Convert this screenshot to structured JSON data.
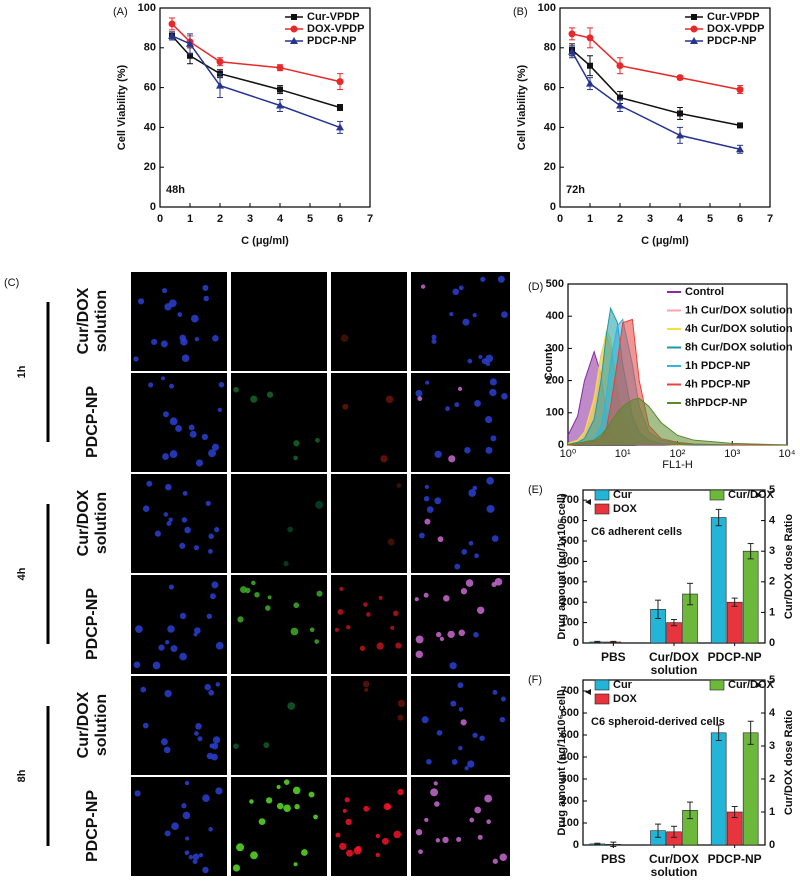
{
  "chart_data": [
    {
      "type": "line",
      "panel_label": "(A)",
      "annotation": "48h",
      "x_label": "C (μg/ml)",
      "y_label": "Cell Viability (%)",
      "x": [
        0.4,
        1,
        2,
        4,
        6
      ],
      "xlim": [
        0,
        7
      ],
      "xticks": [
        0,
        1,
        2,
        3,
        4,
        5,
        6,
        7
      ],
      "ylim": [
        0,
        100
      ],
      "yticks": [
        0,
        20,
        40,
        60,
        80,
        100
      ],
      "legend": "upper right",
      "series": [
        {
          "name": "Cur-VPDP",
          "color": "#111111",
          "values": [
            86,
            76,
            67,
            59,
            50
          ],
          "errors": [
            2,
            4,
            2,
            2,
            1.5
          ]
        },
        {
          "name": "DOX-VPDP",
          "color": "#e8292b",
          "values": [
            92,
            83,
            73,
            70,
            63
          ],
          "errors": [
            3,
            3,
            2,
            1.5,
            4
          ]
        },
        {
          "name": "PDCP-NP",
          "color": "#27358f",
          "values": [
            86,
            82,
            61,
            51,
            40
          ],
          "errors": [
            2,
            5,
            6,
            3,
            3
          ]
        }
      ]
    },
    {
      "type": "line",
      "panel_label": "(B)",
      "annotation": "72h",
      "x_label": "C (μg/ml)",
      "y_label": "Cell Viability (%)",
      "x": [
        0.4,
        1,
        2,
        4,
        6
      ],
      "xlim": [
        0,
        7
      ],
      "xticks": [
        0,
        1,
        2,
        3,
        4,
        5,
        6,
        7
      ],
      "ylim": [
        0,
        100
      ],
      "yticks": [
        0,
        20,
        40,
        60,
        80,
        100
      ],
      "legend": "upper right",
      "series": [
        {
          "name": "Cur-VPDP",
          "color": "#111111",
          "values": [
            79,
            71,
            55,
            47,
            41
          ],
          "errors": [
            3,
            5,
            3,
            3,
            1
          ]
        },
        {
          "name": "DOX-VPDP",
          "color": "#e8292b",
          "values": [
            87,
            85,
            71,
            65,
            59
          ],
          "errors": [
            3,
            5,
            4,
            1,
            2
          ]
        },
        {
          "name": "PDCP-NP",
          "color": "#27358f",
          "values": [
            78,
            62,
            51,
            36,
            29
          ],
          "errors": [
            3,
            3,
            3,
            4,
            2
          ]
        }
      ]
    },
    {
      "type": "area",
      "panel_label": "(D)",
      "x_label": "FL1-H",
      "y_label": "Count",
      "xscale": "log",
      "x": [
        1,
        1.5,
        2,
        3,
        4,
        5,
        6,
        8,
        10,
        15,
        20,
        30,
        50,
        100,
        200,
        1000,
        10000
      ],
      "xlim": [
        1,
        10000
      ],
      "xticks": [
        {
          "value": 1,
          "label": "10⁰"
        },
        {
          "value": 10,
          "label": "10¹"
        },
        {
          "value": 100,
          "label": "10²"
        },
        {
          "value": 1000,
          "label": "10³"
        },
        {
          "value": 10000,
          "label": "10⁴"
        }
      ],
      "ylim": [
        0,
        500
      ],
      "yticks": [
        0,
        100,
        200,
        300,
        400,
        500
      ],
      "legend": "upper right",
      "series": [
        {
          "name": "Control",
          "color": "#8b2a9c",
          "values": [
            30,
            90,
            200,
            290,
            220,
            100,
            40,
            10,
            5,
            2,
            0,
            0,
            0,
            0,
            0,
            0,
            0
          ]
        },
        {
          "name": "1h Cur/DOX solution",
          "color": "#f4a6b0",
          "values": [
            5,
            15,
            40,
            150,
            280,
            340,
            300,
            150,
            60,
            20,
            10,
            5,
            2,
            0,
            0,
            0,
            0
          ]
        },
        {
          "name": "4h Cur/DOX solution",
          "color": "#f2e23a",
          "values": [
            5,
            15,
            40,
            140,
            270,
            355,
            330,
            180,
            80,
            25,
            10,
            5,
            2,
            0,
            0,
            0,
            0
          ]
        },
        {
          "name": "8h Cur/DOX solution",
          "color": "#1a9aa8",
          "values": [
            2,
            8,
            20,
            80,
            200,
            340,
            425,
            380,
            250,
            90,
            40,
            15,
            5,
            2,
            0,
            0,
            0
          ]
        },
        {
          "name": "1h PDCP-NP",
          "color": "#2fb5e0",
          "values": [
            0,
            3,
            8,
            20,
            60,
            150,
            260,
            370,
            390,
            250,
            120,
            40,
            15,
            5,
            2,
            0,
            0
          ]
        },
        {
          "name": "4h PDCP-NP",
          "color": "#e8403c",
          "values": [
            0,
            2,
            5,
            12,
            20,
            50,
            120,
            260,
            380,
            390,
            200,
            60,
            20,
            8,
            3,
            0,
            0
          ]
        },
        {
          "name": "8hPDCP-NP",
          "color": "#5a8a2a",
          "values": [
            2,
            5,
            10,
            15,
            30,
            50,
            70,
            100,
            120,
            140,
            145,
            120,
            70,
            30,
            15,
            5,
            0
          ]
        }
      ]
    },
    {
      "type": "bar",
      "panel_label": "(E)",
      "annotation": "C6 adherent cells",
      "categories": [
        "PBS",
        "Cur/DOX solution",
        "PDCP-NP"
      ],
      "y_label": "Drug amount (ng/1x10⁶ cell)",
      "y2_label": "Cur/DOX dose Ratio",
      "ylim": [
        0,
        750
      ],
      "yticks": [
        0,
        100,
        200,
        300,
        400,
        500,
        600,
        700
      ],
      "y2lim": [
        0,
        5
      ],
      "y2ticks": [
        0,
        1,
        2,
        3,
        4,
        5
      ],
      "series": [
        {
          "name": "Cur",
          "color": "#22b5d8",
          "values": [
            5,
            165,
            615
          ],
          "errors": [
            3,
            45,
            40
          ]
        },
        {
          "name": "DOX",
          "color": "#e8343c",
          "values": [
            5,
            100,
            200
          ],
          "errors": [
            3,
            15,
            20
          ]
        },
        {
          "name": "Cur/DOX",
          "color": "#6cb83a",
          "axis": "y2",
          "values": [
            null,
            1.6,
            3.0
          ],
          "errors": [
            null,
            0.35,
            0.25
          ]
        }
      ]
    },
    {
      "type": "bar",
      "panel_label": "(F)",
      "annotation": "C6 spheroid-derived cells",
      "categories": [
        "PBS",
        "Cur/DOX solution",
        "PDCP-NP"
      ],
      "y_label": "Drug amount (ng/1x10⁶ cell)",
      "y2_label": "Cur/DOX dose Ratio",
      "ylim": [
        0,
        750
      ],
      "yticks": [
        0,
        100,
        200,
        300,
        400,
        500,
        600,
        700
      ],
      "y2lim": [
        0,
        5
      ],
      "y2ticks": [
        0,
        1,
        2,
        3,
        4,
        5
      ],
      "series": [
        {
          "name": "Cur",
          "color": "#22b5d8",
          "values": [
            5,
            65,
            510
          ],
          "errors": [
            3,
            30,
            35
          ]
        },
        {
          "name": "DOX",
          "color": "#e8343c",
          "values": [
            3,
            60,
            150
          ],
          "errors": [
            10,
            25,
            25
          ]
        },
        {
          "name": "Cur/DOX",
          "color": "#6cb83a",
          "axis": "y2",
          "values": [
            null,
            1.05,
            3.4
          ],
          "errors": [
            null,
            0.25,
            0.35
          ]
        }
      ]
    }
  ],
  "panel_c": {
    "label": "(C)",
    "groups": [
      {
        "time": "1h",
        "rows": [
          "Cur/DOX solution",
          "PDCP-NP"
        ]
      },
      {
        "time": "4h",
        "rows": [
          "Cur/DOX solution",
          "PDCP-NP"
        ]
      },
      {
        "time": "8h",
        "rows": [
          "Cur/DOX solution",
          "PDCP-NP"
        ]
      }
    ]
  }
}
